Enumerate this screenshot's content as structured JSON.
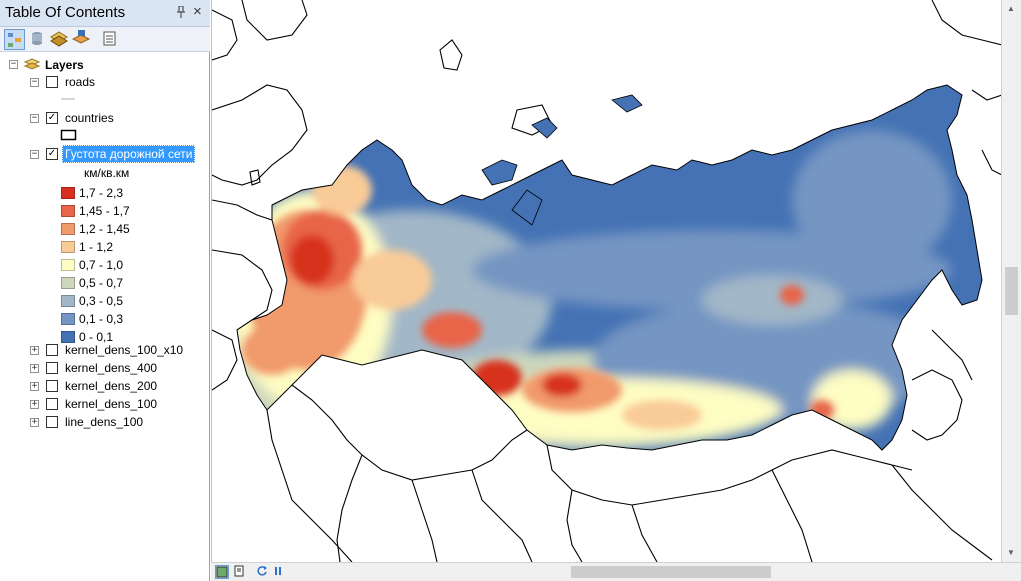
{
  "toc": {
    "title": "Table Of Contents",
    "pin_icon": "#",
    "close_icon": "×",
    "root_label": "Layers",
    "layers": [
      {
        "name": "roads",
        "checked": false,
        "expanded": true
      },
      {
        "name": "countries",
        "checked": true,
        "expanded": true
      },
      {
        "name": "Густота дорожной сети",
        "checked": true,
        "expanded": true,
        "selected": true
      },
      {
        "name": "kernel_dens_100_x10",
        "checked": false,
        "expanded": false
      },
      {
        "name": "kernel_dens_400",
        "checked": false,
        "expanded": false
      },
      {
        "name": "kernel_dens_200",
        "checked": false,
        "expanded": false
      },
      {
        "name": "kernel_dens_100",
        "checked": false,
        "expanded": false
      },
      {
        "name": "line_dens_100",
        "checked": false,
        "expanded": false
      }
    ],
    "legend_unit": "км/кв.км",
    "legend": [
      {
        "label": "1,7 - 2,3",
        "color": "#d7301f"
      },
      {
        "label": "1,45 - 1,7",
        "color": "#e8654a"
      },
      {
        "label": "1,2 - 1,45",
        "color": "#f19a6c"
      },
      {
        "label": "1 - 1,2",
        "color": "#f9cb97"
      },
      {
        "label": "0,7 - 1,0",
        "color": "#fefdc3"
      },
      {
        "label": "0,5 - 0,7",
        "color": "#cdd7bd"
      },
      {
        "label": "0,3 - 0,5",
        "color": "#a2b7c7"
      },
      {
        "label": "0,1 - 0,3",
        "color": "#7595c2"
      },
      {
        "label": "0 - 0,1",
        "color": "#4472b4"
      }
    ]
  },
  "colors": {
    "selection": "#3399ff",
    "titlebar": "#dae5f3"
  }
}
